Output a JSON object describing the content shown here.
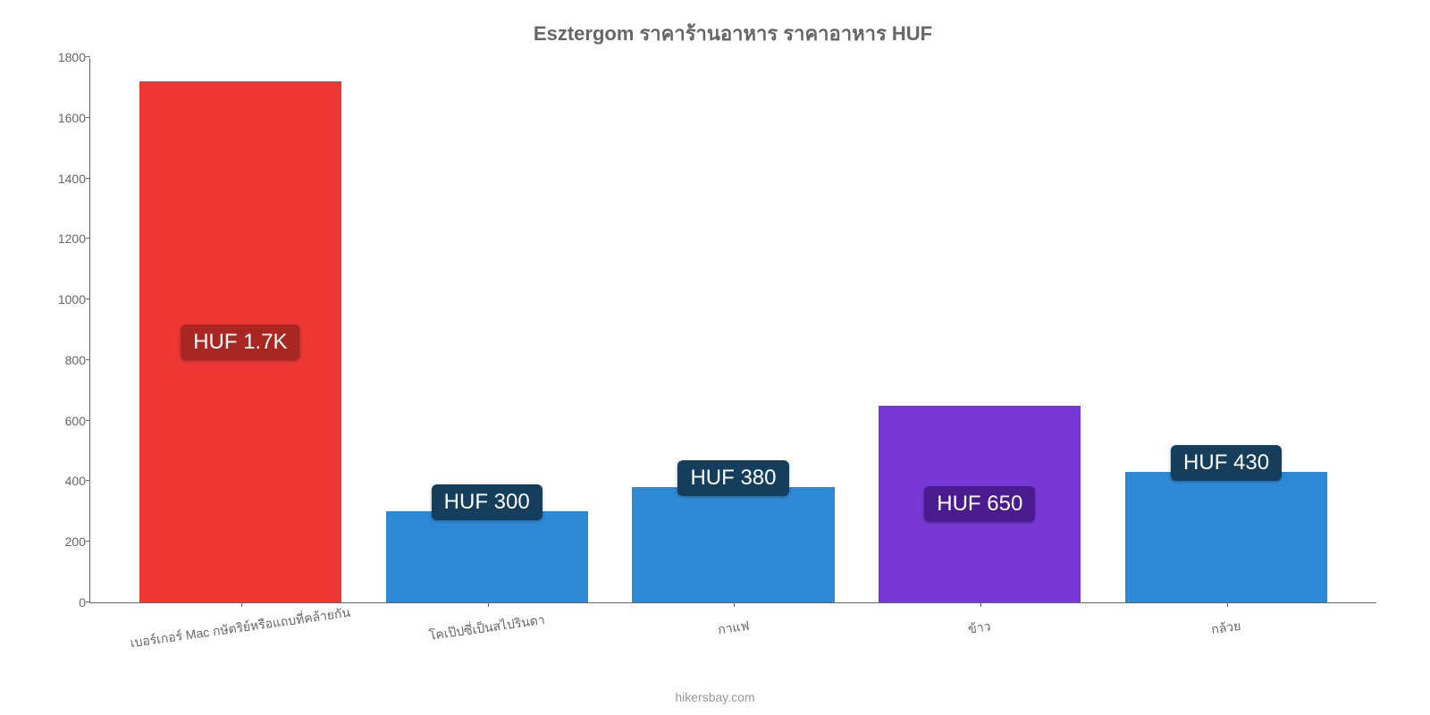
{
  "chart": {
    "type": "bar",
    "title": "Esztergom ราคาร้านอาหาร ราคาอาหาร HUF",
    "title_fontsize": 22,
    "title_color": "#666666",
    "background_color": "#ffffff",
    "axis_color": "#666666",
    "label_color": "#666666",
    "label_fontsize": 14,
    "badge_fontsize": 24,
    "ylim": [
      0,
      1800
    ],
    "ytick_step": 200,
    "yticks": [
      {
        "value": 0,
        "label": "0"
      },
      {
        "value": 200,
        "label": "200"
      },
      {
        "value": 400,
        "label": "400"
      },
      {
        "value": 600,
        "label": "600"
      },
      {
        "value": 800,
        "label": "800"
      },
      {
        "value": 1000,
        "label": "1000"
      },
      {
        "value": 1200,
        "label": "1200"
      },
      {
        "value": 1400,
        "label": "1400"
      },
      {
        "value": 1600,
        "label": "1600"
      },
      {
        "value": 1800,
        "label": "1800"
      }
    ],
    "categories": [
      "เบอร์เกอร์ Mac กษัตริย์หรือแถบที่คล้ายกัน",
      "โคเป๊ปซี่เป็นสไปรินดา",
      "กาแฟ",
      "ข้าว",
      "กล้วย"
    ],
    "bars": [
      {
        "value": 1720,
        "label": "HUF 1.7K",
        "color": "#ed3833",
        "badge_bg": "#a82722",
        "badge_pos": "middle"
      },
      {
        "value": 300,
        "label": "HUF 300",
        "color": "#2d89d6",
        "badge_bg": "#153d5c",
        "badge_pos": "above"
      },
      {
        "value": 380,
        "label": "HUF 380",
        "color": "#2d89d6",
        "badge_bg": "#153d5c",
        "badge_pos": "above"
      },
      {
        "value": 650,
        "label": "HUF 650",
        "color": "#7838d6",
        "badge_bg": "#4a1a8f",
        "badge_pos": "middle"
      },
      {
        "value": 430,
        "label": "HUF 430",
        "color": "#2d89d6",
        "badge_bg": "#153d5c",
        "badge_pos": "above"
      }
    ],
    "bar_width": 0.82,
    "attribution": "hikersbay.com"
  }
}
